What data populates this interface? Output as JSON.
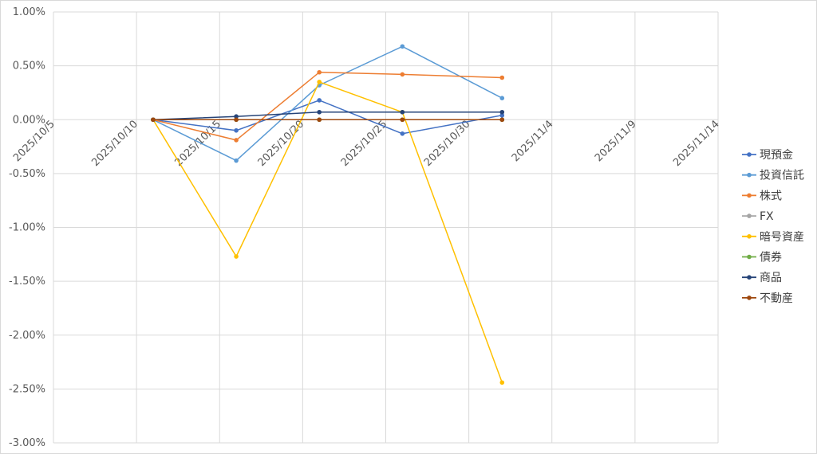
{
  "chart_data": {
    "type": "line",
    "title": "",
    "xlabel": "",
    "ylabel": "",
    "x_ticks": [
      "2025/10/5",
      "2025/10/10",
      "2025/10/15",
      "2025/10/20",
      "2025/10/25",
      "2025/10/30",
      "2025/11/4",
      "2025/11/9",
      "2025/11/14"
    ],
    "xlim": [
      "2025/10/5",
      "2025/11/14"
    ],
    "y_ticks": [
      "1.00%",
      "0.50%",
      "0.00%",
      "-0.50%",
      "-1.00%",
      "-1.50%",
      "-2.00%",
      "-2.50%",
      "-3.00%"
    ],
    "ylim": [
      -3.0,
      1.0
    ],
    "y_unit": "%",
    "grid": true,
    "legend_position": "right",
    "x": [
      "2025/10/11",
      "2025/10/16",
      "2025/10/21",
      "2025/10/26",
      "2025/11/1"
    ],
    "series": [
      {
        "name": "現預金",
        "color": "#4472C4",
        "values": [
          0.0,
          -0.1,
          0.18,
          -0.13,
          0.04
        ]
      },
      {
        "name": "投資信託",
        "color": "#5B9BD5",
        "values": [
          0.0,
          -0.38,
          0.32,
          0.68,
          0.2
        ]
      },
      {
        "name": "株式",
        "color": "#ED7D31",
        "values": [
          0.0,
          -0.19,
          0.44,
          0.42,
          0.39
        ]
      },
      {
        "name": "FX",
        "color": "#A5A5A5",
        "values": [
          0.0,
          0.0,
          0.0,
          0.0,
          0.0
        ]
      },
      {
        "name": "暗号資産",
        "color": "#FFC000",
        "values": [
          0.0,
          -1.27,
          0.35,
          0.07,
          -2.44
        ]
      },
      {
        "name": "債券",
        "color": "#70AD47",
        "values": [
          0.0,
          0.0,
          0.0,
          0.0,
          0.0
        ]
      },
      {
        "name": "商品",
        "color": "#264478",
        "values": [
          0.0,
          0.03,
          0.07,
          0.07,
          0.07
        ]
      },
      {
        "name": "不動産",
        "color": "#9E480E",
        "values": [
          0.0,
          0.0,
          0.0,
          0.0,
          0.0
        ]
      }
    ]
  }
}
